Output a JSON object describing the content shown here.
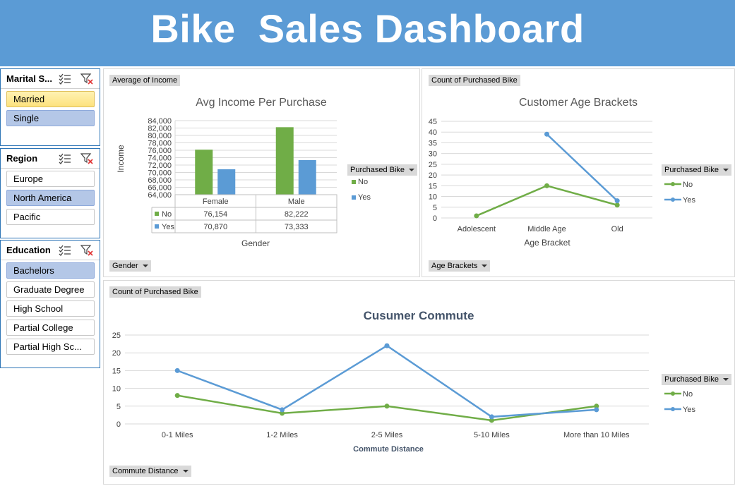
{
  "header": {
    "title": "Bike  Sales Dashboard"
  },
  "slicers": [
    {
      "id": "marital",
      "title": "Marital S...",
      "items": [
        {
          "label": "Married",
          "state": "selected-gold"
        },
        {
          "label": "Single",
          "state": "selected"
        }
      ]
    },
    {
      "id": "region",
      "title": "Region",
      "items": [
        {
          "label": "Europe",
          "state": "normal"
        },
        {
          "label": "North America",
          "state": "selected"
        },
        {
          "label": "Pacific",
          "state": "normal"
        }
      ]
    },
    {
      "id": "education",
      "title": "Education",
      "items": [
        {
          "label": "Bachelors",
          "state": "selected"
        },
        {
          "label": "Graduate Degree",
          "state": "normal"
        },
        {
          "label": "High School",
          "state": "normal"
        },
        {
          "label": "Partial College",
          "state": "normal"
        },
        {
          "label": "Partial High Sc...",
          "state": "normal"
        }
      ]
    }
  ],
  "icons": {
    "multi_select": "multi-select-icon",
    "clear_filter": "clear-filter-icon",
    "dropdown": "chevron-down-icon"
  },
  "colors": {
    "banner": "#5b9bd5",
    "no": "#70ad47",
    "yes": "#5b9bd5",
    "selected": "#b4c7e7",
    "selected_gold": "#fde27d"
  },
  "income_chart": {
    "value_button": "Average of Income",
    "axis_button": "Gender",
    "legend_button": "Purchased Bike"
  },
  "age_chart": {
    "value_button": "Count of Purchased Bike",
    "axis_button": "Age Brackets",
    "legend_button": "Purchased Bike"
  },
  "commute_chart": {
    "value_button": "Count of Purchased Bike",
    "axis_button": "Commute Distance",
    "legend_button": "Purchased Bike"
  },
  "chart_data": [
    {
      "id": "income",
      "type": "bar",
      "title": "Avg Income Per Purchase",
      "xlabel": "Gender",
      "ylabel": "Income",
      "categories": [
        "Female",
        "Male"
      ],
      "series": [
        {
          "name": "No",
          "values": [
            76154,
            82222
          ],
          "labels": [
            "76,154",
            "82,222"
          ]
        },
        {
          "name": "Yes",
          "values": [
            70870,
            73333
          ],
          "labels": [
            "70,870",
            "73,333"
          ]
        }
      ],
      "ylim": [
        64000,
        84000
      ],
      "yticks": [
        "64,000",
        "66,000",
        "68,000",
        "70,000",
        "72,000",
        "74,000",
        "76,000",
        "78,000",
        "80,000",
        "82,000",
        "84,000"
      ],
      "legend": "right",
      "data_table": true,
      "grid": true
    },
    {
      "id": "age",
      "type": "line",
      "title": "Customer Age Brackets",
      "xlabel": "Age Bracket",
      "ylabel": "",
      "categories": [
        "Adolescent",
        "Middle Age",
        "Old"
      ],
      "series": [
        {
          "name": "No",
          "values": [
            1,
            15,
            6
          ]
        },
        {
          "name": "Yes",
          "values": [
            null,
            39,
            8
          ]
        }
      ],
      "ylim": [
        0,
        45
      ],
      "yticks": [
        "0",
        "5",
        "10",
        "15",
        "20",
        "25",
        "30",
        "35",
        "40",
        "45"
      ],
      "legend": "right",
      "grid": true
    },
    {
      "id": "commute",
      "type": "line",
      "title": "Cusumer Commute",
      "xlabel": "Commute Distance",
      "ylabel": "",
      "categories": [
        "0-1 Miles",
        "1-2 Miles",
        "2-5 Miles",
        "5-10 Miles",
        "More than 10 Miles"
      ],
      "series": [
        {
          "name": "No",
          "values": [
            8,
            3,
            5,
            1,
            5
          ]
        },
        {
          "name": "Yes",
          "values": [
            15,
            4,
            22,
            2,
            4
          ]
        }
      ],
      "ylim": [
        0,
        25
      ],
      "yticks": [
        "0",
        "5",
        "10",
        "15",
        "20",
        "25"
      ],
      "legend": "right",
      "grid": true
    }
  ]
}
